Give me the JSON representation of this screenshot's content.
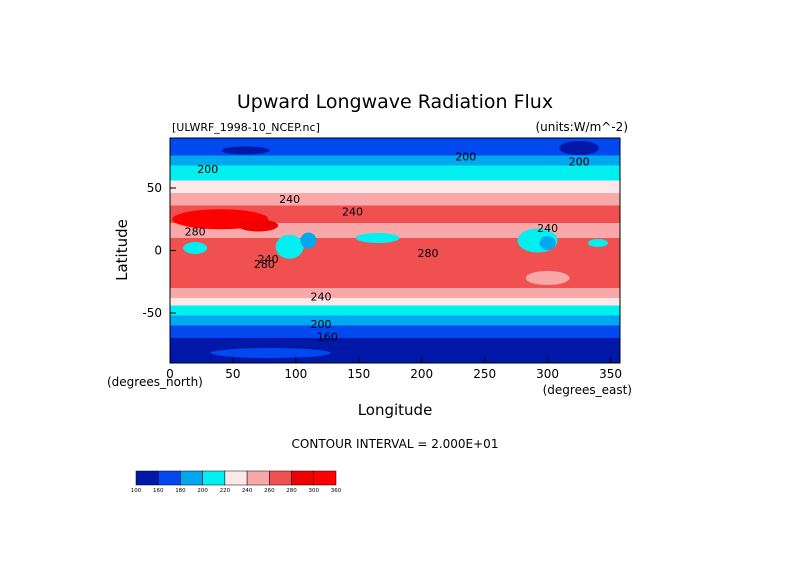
{
  "chart_data": {
    "type": "heatmap",
    "title": "Upward Longwave Radiation Flux",
    "dataset_label": "[ULWRF_1998-10_NCEP.nc]",
    "units_label": "(units:W/m^-2)",
    "xlabel": "Longitude",
    "ylabel": "Latitude",
    "x_unit_label": "(degrees_east)",
    "y_unit_label": "(degrees_north)",
    "xlim": [
      0,
      357.5
    ],
    "ylim": [
      -90,
      90
    ],
    "x_ticks": [
      "0",
      "50",
      "100",
      "150",
      "200",
      "250",
      "300",
      "350"
    ],
    "y_ticks": [
      "50",
      "0",
      "-50"
    ],
    "contour_interval_label": "CONTOUR INTERVAL = 2.000E+01",
    "colorbar": {
      "levels": [
        100,
        160,
        180,
        200,
        220,
        240,
        260,
        280,
        300,
        360
      ],
      "labels": [
        "100",
        "160",
        "180",
        "200",
        "220",
        "240",
        "260",
        "280",
        "300",
        "360"
      ],
      "colors": [
        "#0018a8",
        "#0048f0",
        "#00a8f0",
        "#00f0f0",
        "#fce8e8",
        "#f8a8a8",
        "#f05050",
        "#f00000",
        "#ff0000"
      ]
    },
    "contour_labels": [
      {
        "lon": 30,
        "lat": 62,
        "text": "200"
      },
      {
        "lon": 235,
        "lat": 72,
        "text": "200"
      },
      {
        "lon": 325,
        "lat": 68,
        "text": "200"
      },
      {
        "lon": 95,
        "lat": 38,
        "text": "240"
      },
      {
        "lon": 145,
        "lat": 28,
        "text": "240"
      },
      {
        "lon": 300,
        "lat": 15,
        "text": "240"
      },
      {
        "lon": 20,
        "lat": 12,
        "text": "280"
      },
      {
        "lon": 78,
        "lat": -10,
        "text": "240"
      },
      {
        "lon": 75,
        "lat": -14,
        "text": "280"
      },
      {
        "lon": 205,
        "lat": -5,
        "text": "280"
      },
      {
        "lon": 120,
        "lat": -40,
        "text": "240"
      },
      {
        "lon": 120,
        "lat": -62,
        "text": "200"
      },
      {
        "lon": 125,
        "lat": -72,
        "text": "160"
      }
    ]
  }
}
